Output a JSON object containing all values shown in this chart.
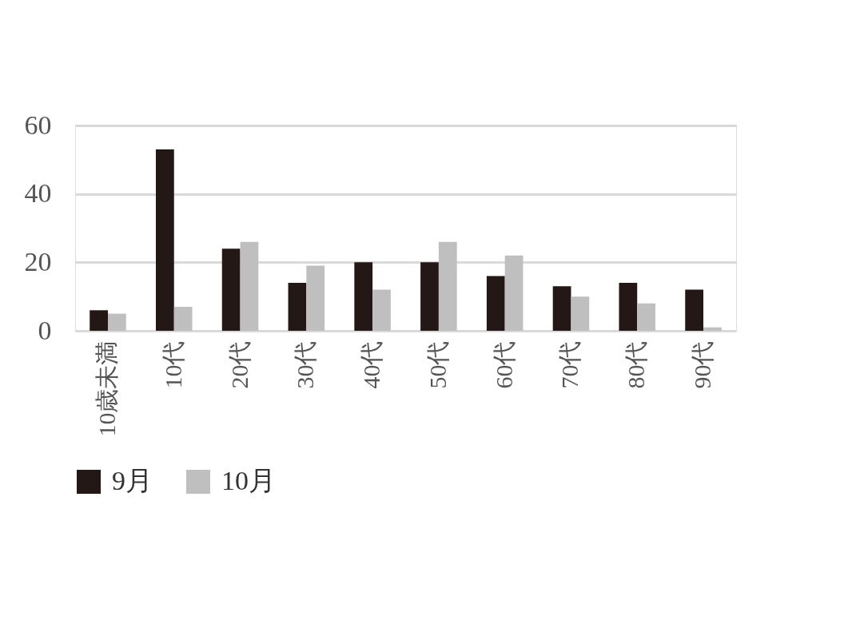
{
  "chart_data": {
    "type": "bar",
    "categories": [
      "10歳未満",
      "10代",
      "20代",
      "30代",
      "40代",
      "50代",
      "60代",
      "70代",
      "80代",
      "90代"
    ],
    "series": [
      {
        "name": "9月",
        "color": "#231815",
        "values": [
          6,
          53,
          24,
          14,
          20,
          20,
          16,
          13,
          14,
          12
        ]
      },
      {
        "name": "10月",
        "color": "#bfbfbf",
        "values": [
          5,
          7,
          26,
          19,
          12,
          26,
          22,
          10,
          8,
          1
        ]
      }
    ],
    "ylim": [
      0,
      60
    ],
    "yticks": [
      0,
      20,
      40,
      60
    ],
    "grid": "y",
    "legend": "bottom"
  }
}
